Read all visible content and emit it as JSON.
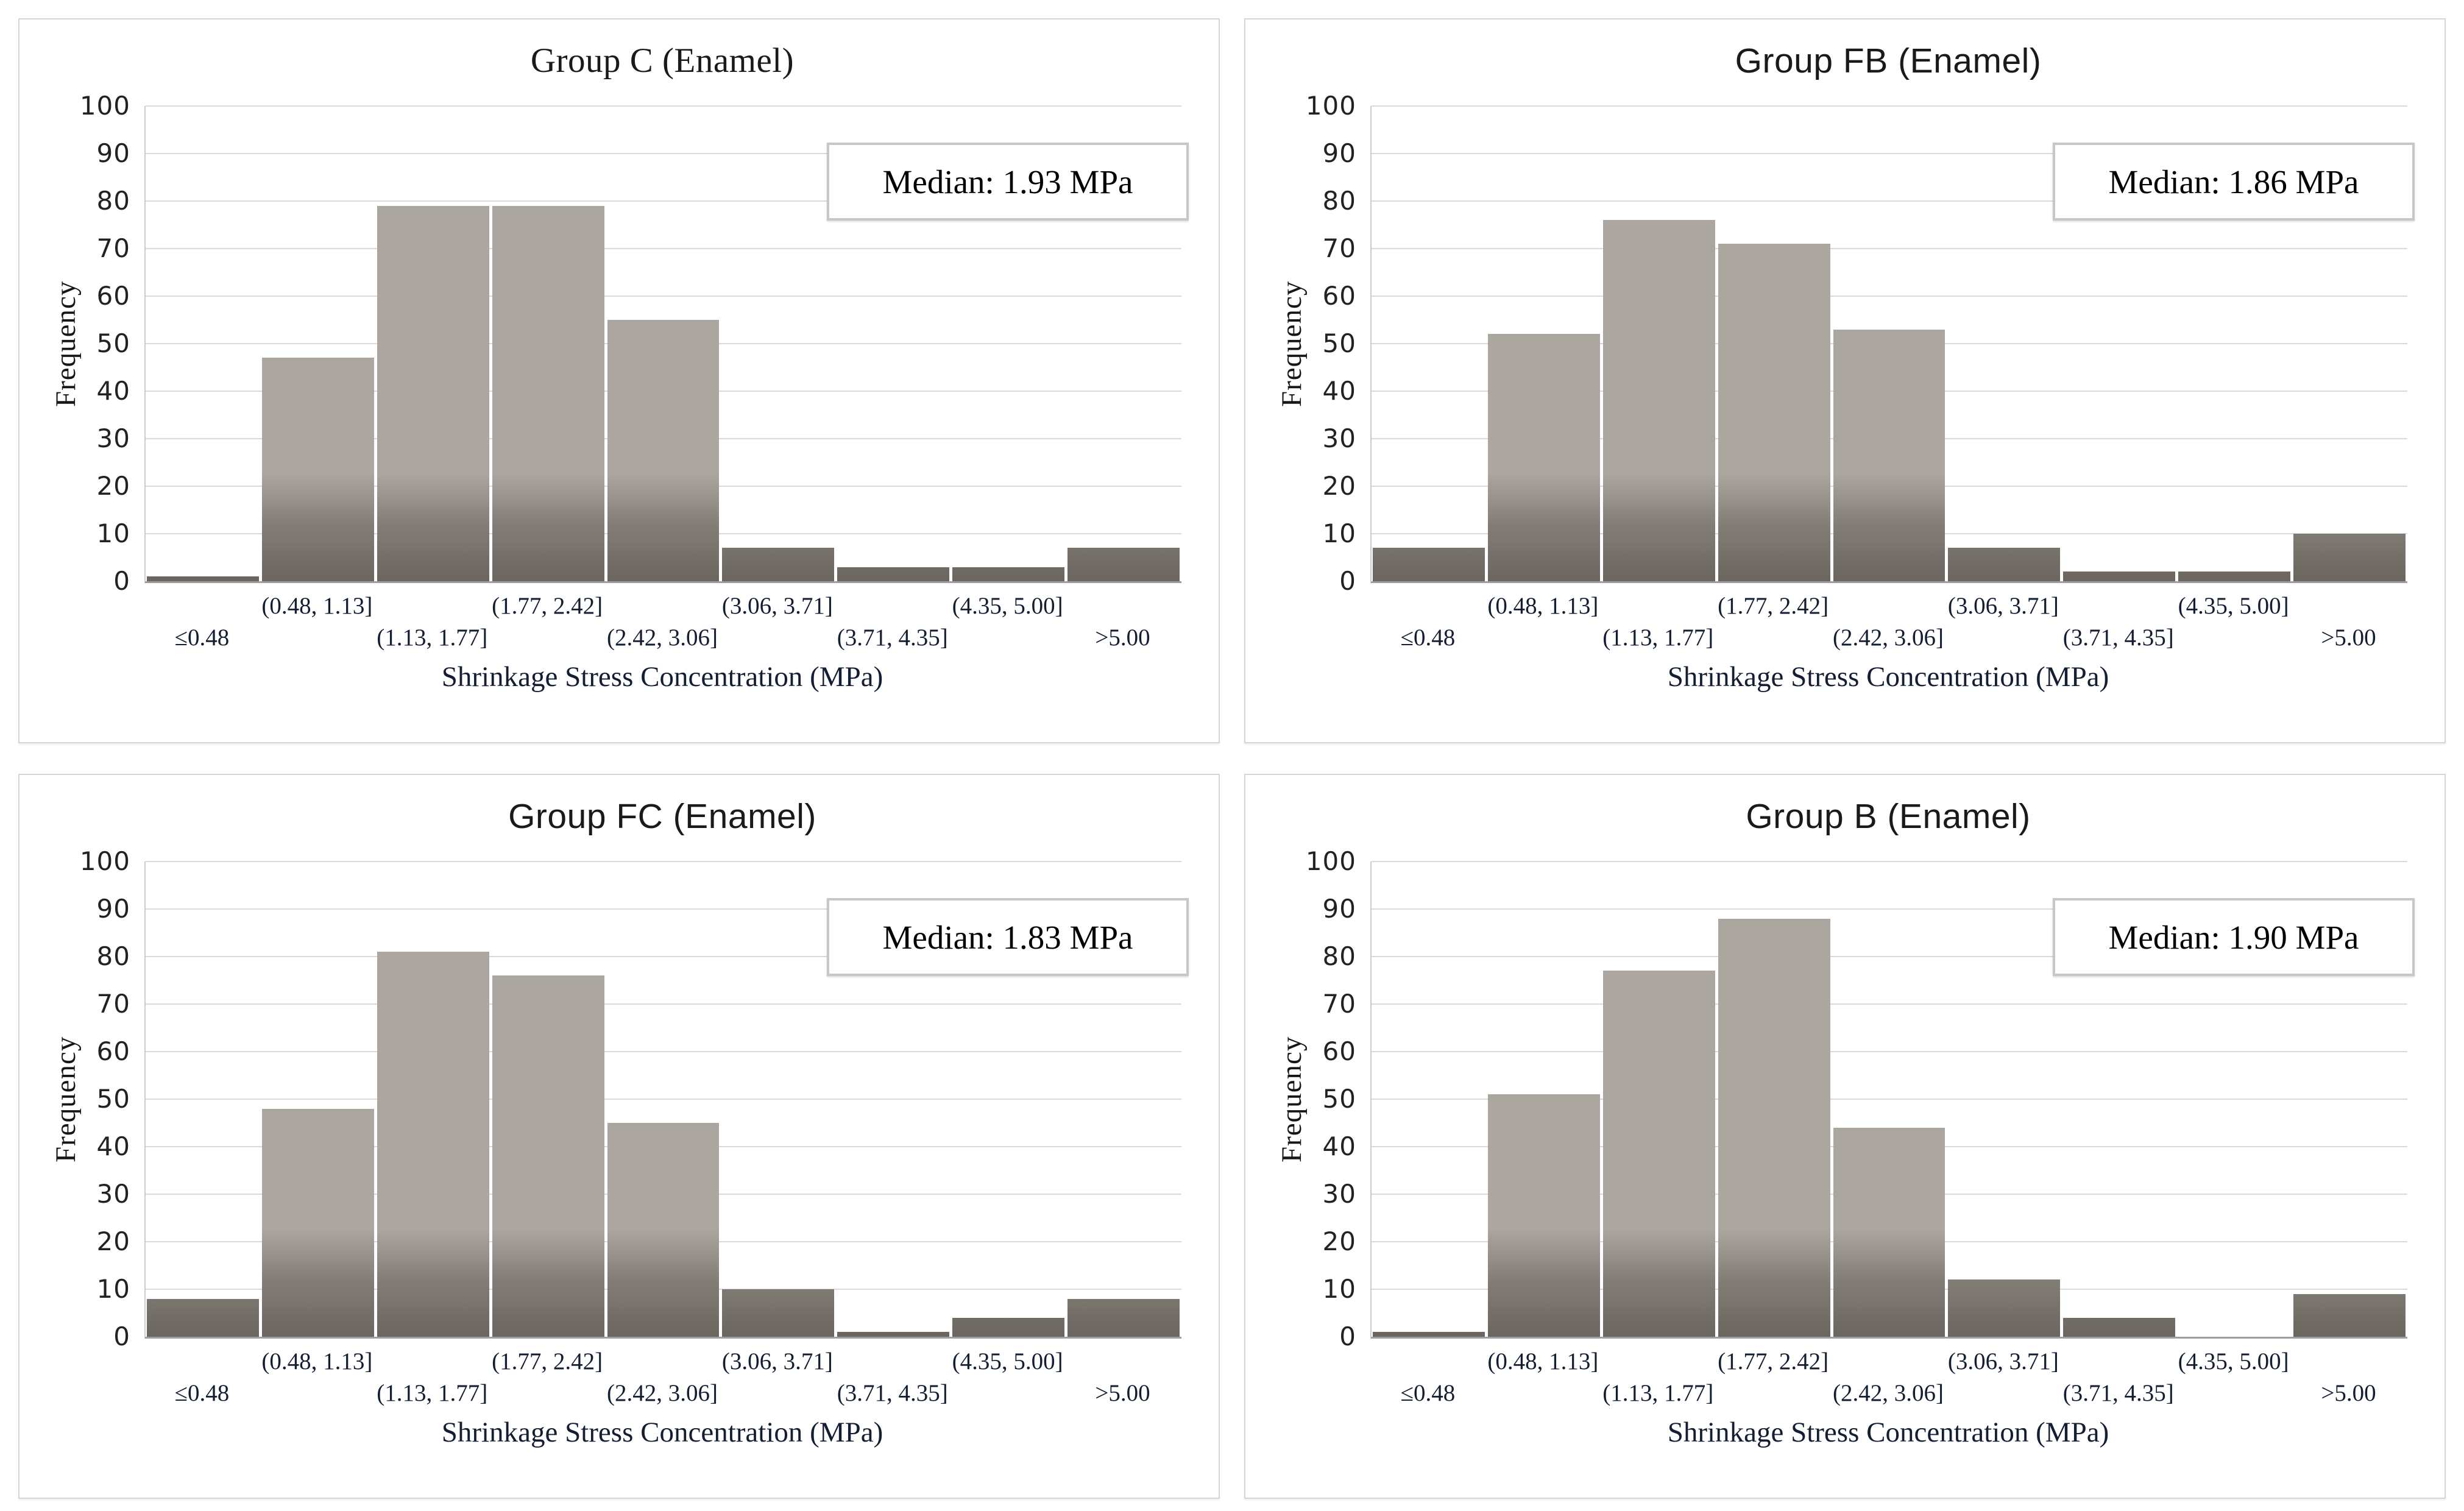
{
  "figure": {
    "ylabel": "Frequency",
    "xlabel": "Shrinkage Stress Concentration (MPa)",
    "y_ticks": [
      0,
      10,
      20,
      30,
      40,
      50,
      60,
      70,
      80,
      90,
      100
    ],
    "categories": [
      "≤0.48",
      "(0.48, 1.13]",
      "(1.13, 1.77]",
      "(1.77, 2.42]",
      "(2.42, 3.06]",
      "(3.06, 3.71]",
      "(3.71, 4.35]",
      "(4.35, 5.00]",
      ">5.00"
    ]
  },
  "colors": {
    "bar_top": "#aca6a1",
    "bar_bottom": "#6b655f",
    "gridline": "#dadada",
    "axis_line": "#9e9e9e",
    "x_text": "#141e33",
    "panel_border": "#d6d6d6"
  },
  "chart_data": [
    {
      "type": "bar",
      "title": "Group C (Enamel)",
      "median_label": "Median: 1.93 MPa",
      "categories": [
        "≤0.48",
        "(0.48, 1.13]",
        "(1.13, 1.77]",
        "(1.77, 2.42]",
        "(2.42, 3.06]",
        "(3.06, 3.71]",
        "(3.71, 4.35]",
        "(4.35, 5.00]",
        ">5.00"
      ],
      "values": [
        1,
        47,
        79,
        79,
        55,
        7,
        3,
        3,
        7
      ],
      "xlabel": "Shrinkage Stress Concentration (MPa)",
      "ylabel": "Frequency",
      "ylim": [
        0,
        100
      ],
      "grid": true,
      "legend": "none"
    },
    {
      "type": "bar",
      "title": "Group FB (Enamel)",
      "median_label": "Median: 1.86 MPa",
      "categories": [
        "≤0.48",
        "(0.48, 1.13]",
        "(1.13, 1.77]",
        "(1.77, 2.42]",
        "(2.42, 3.06]",
        "(3.06, 3.71]",
        "(3.71, 4.35]",
        "(4.35, 5.00]",
        ">5.00"
      ],
      "values": [
        7,
        52,
        76,
        71,
        53,
        7,
        2,
        2,
        10
      ],
      "xlabel": "Shrinkage Stress Concentration (MPa)",
      "ylabel": "Frequency",
      "ylim": [
        0,
        100
      ],
      "grid": true,
      "legend": "none"
    },
    {
      "type": "bar",
      "title": "Group FC (Enamel)",
      "median_label": "Median: 1.83 MPa",
      "categories": [
        "≤0.48",
        "(0.48, 1.13]",
        "(1.13, 1.77]",
        "(1.77, 2.42]",
        "(2.42, 3.06]",
        "(3.06, 3.71]",
        "(3.71, 4.35]",
        "(4.35, 5.00]",
        ">5.00"
      ],
      "values": [
        8,
        48,
        81,
        76,
        45,
        10,
        1,
        4,
        8
      ],
      "xlabel": "Shrinkage Stress Concentration (MPa)",
      "ylabel": "Frequency",
      "ylim": [
        0,
        100
      ],
      "grid": true,
      "legend": "none"
    },
    {
      "type": "bar",
      "title": "Group B (Enamel)",
      "median_label": "Median: 1.90 MPa",
      "categories": [
        "≤0.48",
        "(0.48, 1.13]",
        "(1.13, 1.77]",
        "(1.77, 2.42]",
        "(2.42, 3.06]",
        "(3.06, 3.71]",
        "(3.71, 4.35]",
        "(4.35, 5.00]",
        ">5.00"
      ],
      "values": [
        1,
        51,
        77,
        88,
        44,
        12,
        4,
        0,
        9
      ],
      "xlabel": "Shrinkage Stress Concentration (MPa)",
      "ylabel": "Frequency",
      "ylim": [
        0,
        100
      ],
      "grid": true,
      "legend": "none"
    }
  ]
}
